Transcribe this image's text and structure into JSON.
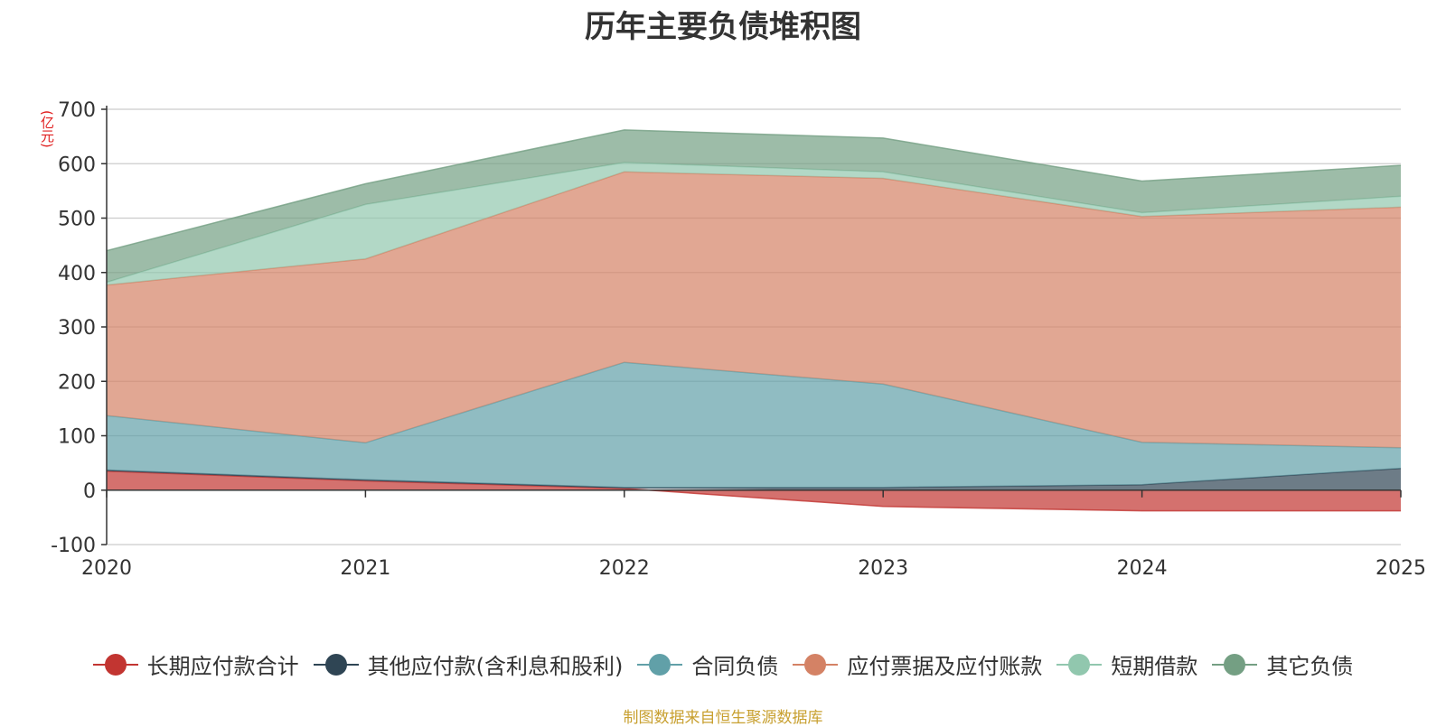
{
  "chart_data": {
    "type": "area",
    "stacked": true,
    "title": "历年主要负债堆积图",
    "ylabel": "(亿元)",
    "xlabel": "",
    "categories": [
      "2020",
      "2021",
      "2022",
      "2023",
      "2024",
      "2025"
    ],
    "ylim": [
      -100,
      700
    ],
    "yticks": [
      -100,
      0,
      100,
      200,
      300,
      400,
      500,
      600,
      700
    ],
    "grid": true,
    "legend_position": "bottom",
    "series": [
      {
        "name": "长期应付款合计",
        "color": "#c23531",
        "values": [
          35,
          17,
          3,
          -30,
          -38,
          -38
        ]
      },
      {
        "name": "其他应付款(含利息和股利)",
        "color": "#2f4554",
        "values": [
          2,
          2,
          2,
          5,
          10,
          40
        ]
      },
      {
        "name": "合同负债",
        "color": "#61a0a8",
        "values": [
          100,
          68,
          230,
          190,
          78,
          38
        ]
      },
      {
        "name": "应付票据及应付账款",
        "color": "#d48265",
        "values": [
          240,
          338,
          350,
          378,
          415,
          442
        ]
      },
      {
        "name": "短期借款",
        "color": "#91c7ae",
        "values": [
          5,
          100,
          17,
          12,
          7,
          20
        ]
      },
      {
        "name": "其它负债",
        "color": "#749f83",
        "values": [
          58,
          38,
          60,
          62,
          58,
          57
        ]
      }
    ]
  },
  "source_note": "制图数据来自恒生聚源数据库"
}
